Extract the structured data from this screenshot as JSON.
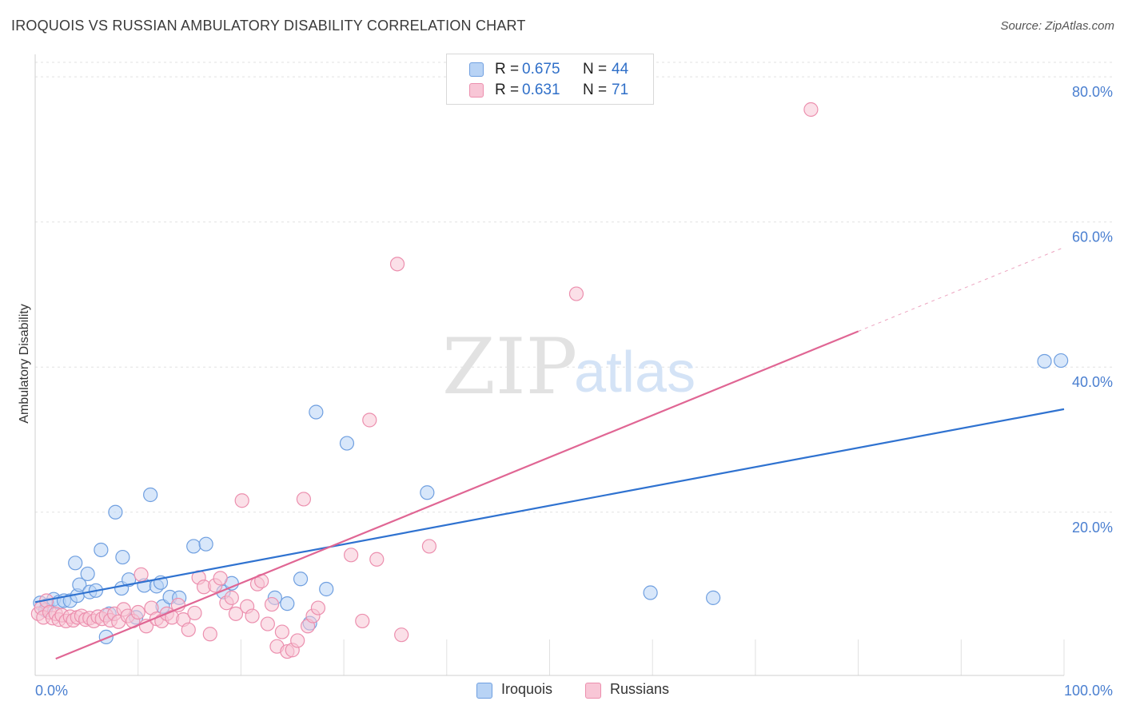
{
  "header": {
    "title": "IROQUOIS VS RUSSIAN AMBULATORY DISABILITY CORRELATION CHART",
    "source": "Source: ZipAtlas.com"
  },
  "watermark": {
    "zip": "ZIP",
    "atlas": "atlas"
  },
  "colors": {
    "iroquois_fill": "#b8d3f5",
    "iroquois_stroke": "#6f9fe0",
    "iroquois_line": "#2f72d0",
    "russians_fill": "#f8c6d6",
    "russians_stroke": "#ec8fae",
    "russians_line": "#e06694",
    "grid": "#e2e2e2",
    "tick_text": "#4a7fd0"
  },
  "legend": {
    "rows": [
      {
        "r_label": "R =",
        "r_value": "0.675",
        "n_label": "N =",
        "n_value": "44"
      },
      {
        "r_label": "R =",
        "r_value": "0.631",
        "n_label": "N =",
        "n_value": "71"
      }
    ],
    "bottom": [
      "Iroquois",
      "Russians"
    ]
  },
  "chart_data": {
    "type": "scatter",
    "title": "IROQUOIS VS RUSSIAN AMBULATORY DISABILITY CORRELATION CHART",
    "xlabel": "",
    "ylabel": "Ambulatory Disability",
    "xlim": [
      0,
      100
    ],
    "ylim": [
      -2.5,
      82
    ],
    "x_tick_labels": [
      "0.0%",
      "100.0%"
    ],
    "y_ticks": [
      20,
      40,
      60,
      80
    ],
    "y_tick_labels": [
      "20.0%",
      "40.0%",
      "60.0%",
      "80.0%"
    ],
    "grid": true,
    "legend_placement": "top-center",
    "series": [
      {
        "name": "Iroquois",
        "R": 0.675,
        "N": 44,
        "trend": {
          "x": [
            0,
            100
          ],
          "y": [
            7.6,
            34.2
          ],
          "solid_to": 100
        },
        "points": [
          [
            0.5,
            7.5
          ],
          [
            1.2,
            7.2
          ],
          [
            1.8,
            8.0
          ],
          [
            2.3,
            7.6
          ],
          [
            2.8,
            7.8
          ],
          [
            3.4,
            7.8
          ],
          [
            4.1,
            8.5
          ],
          [
            3.9,
            13.0
          ],
          [
            4.3,
            10.0
          ],
          [
            5.1,
            11.5
          ],
          [
            5.3,
            9.0
          ],
          [
            5.9,
            9.2
          ],
          [
            6.4,
            14.8
          ],
          [
            7.2,
            6.0
          ],
          [
            7.8,
            20.0
          ],
          [
            8.4,
            9.5
          ],
          [
            8.5,
            13.8
          ],
          [
            9.1,
            10.7
          ],
          [
            9.8,
            5.5
          ],
          [
            10.6,
            9.9
          ],
          [
            11.2,
            22.4
          ],
          [
            11.8,
            9.8
          ],
          [
            12.2,
            10.3
          ],
          [
            12.4,
            7.0
          ],
          [
            13.1,
            8.3
          ],
          [
            14.0,
            8.2
          ],
          [
            15.4,
            15.3
          ],
          [
            16.6,
            15.6
          ],
          [
            18.3,
            9.0
          ],
          [
            19.1,
            10.2
          ],
          [
            23.3,
            8.2
          ],
          [
            24.5,
            7.4
          ],
          [
            25.8,
            10.8
          ],
          [
            26.7,
            4.7
          ],
          [
            27.3,
            33.8
          ],
          [
            28.3,
            9.4
          ],
          [
            30.3,
            29.5
          ],
          [
            38.1,
            22.7
          ],
          [
            59.8,
            8.9
          ],
          [
            65.9,
            8.2
          ],
          [
            98.1,
            40.8
          ],
          [
            99.7,
            40.9
          ],
          [
            6.9,
            2.8
          ],
          [
            1.0,
            6.5
          ]
        ]
      },
      {
        "name": "Russians",
        "R": 0.631,
        "N": 71,
        "trend": {
          "x": [
            2,
            100
          ],
          "y": [
            -0.2,
            56.5
          ],
          "solid_to": 80
        },
        "points": [
          [
            0.3,
            6.0
          ],
          [
            0.6,
            6.8
          ],
          [
            0.8,
            5.5
          ],
          [
            1.1,
            7.8
          ],
          [
            1.4,
            6.2
          ],
          [
            1.7,
            5.4
          ],
          [
            2.0,
            6.0
          ],
          [
            2.3,
            5.2
          ],
          [
            2.6,
            5.8
          ],
          [
            3.0,
            5.0
          ],
          [
            3.4,
            5.6
          ],
          [
            3.7,
            5.1
          ],
          [
            4.1,
            5.5
          ],
          [
            4.5,
            5.7
          ],
          [
            4.9,
            5.2
          ],
          [
            5.3,
            5.4
          ],
          [
            5.7,
            5.0
          ],
          [
            6.1,
            5.6
          ],
          [
            6.5,
            5.3
          ],
          [
            6.9,
            5.8
          ],
          [
            7.3,
            5.1
          ],
          [
            7.7,
            6.0
          ],
          [
            8.1,
            4.9
          ],
          [
            8.6,
            6.6
          ],
          [
            9.0,
            5.7
          ],
          [
            9.5,
            5.0
          ],
          [
            10.0,
            6.2
          ],
          [
            10.3,
            11.4
          ],
          [
            10.8,
            4.3
          ],
          [
            11.3,
            6.8
          ],
          [
            11.8,
            5.3
          ],
          [
            12.3,
            5.0
          ],
          [
            12.8,
            6.0
          ],
          [
            13.3,
            5.5
          ],
          [
            13.9,
            7.2
          ],
          [
            14.4,
            5.2
          ],
          [
            14.9,
            3.8
          ],
          [
            15.5,
            6.1
          ],
          [
            15.9,
            11.0
          ],
          [
            16.4,
            9.7
          ],
          [
            17.0,
            3.2
          ],
          [
            17.5,
            9.9
          ],
          [
            18.0,
            10.9
          ],
          [
            18.6,
            7.5
          ],
          [
            19.1,
            8.2
          ],
          [
            19.5,
            6.0
          ],
          [
            20.1,
            21.6
          ],
          [
            20.6,
            7.0
          ],
          [
            21.1,
            5.7
          ],
          [
            21.6,
            10.1
          ],
          [
            22.0,
            10.5
          ],
          [
            22.6,
            4.6
          ],
          [
            23.0,
            7.3
          ],
          [
            23.5,
            1.5
          ],
          [
            24.0,
            3.5
          ],
          [
            24.5,
            0.8
          ],
          [
            25.0,
            1.0
          ],
          [
            25.5,
            2.3
          ],
          [
            26.1,
            21.8
          ],
          [
            26.5,
            4.3
          ],
          [
            27.0,
            5.7
          ],
          [
            27.5,
            6.8
          ],
          [
            30.7,
            14.1
          ],
          [
            31.8,
            5.0
          ],
          [
            32.5,
            32.7
          ],
          [
            33.2,
            13.5
          ],
          [
            35.2,
            54.2
          ],
          [
            35.6,
            3.1
          ],
          [
            38.3,
            15.3
          ],
          [
            52.6,
            50.1
          ],
          [
            75.4,
            75.5
          ]
        ]
      }
    ]
  }
}
